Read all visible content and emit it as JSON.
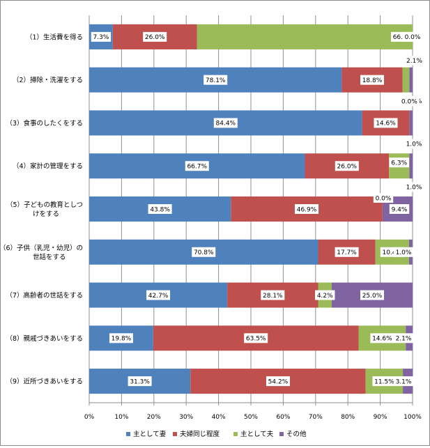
{
  "chart_data": {
    "type": "bar",
    "orientation": "horizontal",
    "stacked": "percent",
    "categories": [
      [
        "（1）生活費を得る"
      ],
      [
        "（2）掃除・洗濯をする"
      ],
      [
        "（3）食事のしたくをする"
      ],
      [
        "（4）家計の管理をする"
      ],
      [
        "（5）子どもの教育としつ",
        "けをする"
      ],
      [
        "（6）子供（乳児・幼児）の",
        "世話をする"
      ],
      [
        "（7）高齢者の世話をする"
      ],
      [
        "（8）親戚づきあいをする"
      ],
      [
        "（9）近所づきあいをする"
      ]
    ],
    "series": [
      {
        "name": "主として妻",
        "color": "#4f81bd",
        "values": [
          7.3,
          78.1,
          84.4,
          66.7,
          43.8,
          70.8,
          42.7,
          19.8,
          31.3
        ],
        "labels": [
          "7.3%",
          "78.1%",
          "84.4%",
          "66.7%",
          "43.8%",
          "70.8%",
          "42.7%",
          "19.8%",
          "31.3%"
        ]
      },
      {
        "name": "夫婦同じ程度",
        "color": "#c0504d",
        "values": [
          26.0,
          18.8,
          14.6,
          26.0,
          46.9,
          17.7,
          28.1,
          63.5,
          54.2
        ],
        "labels": [
          "26.0%",
          "18.8%",
          "14.6%",
          "26.0%",
          "46.9%",
          "17.7%",
          "28.1%",
          "63.5%",
          "54.2%"
        ]
      },
      {
        "name": "主として夫",
        "color": "#9bbb59",
        "values": [
          66.7,
          2.1,
          0.0,
          6.3,
          0.0,
          10.4,
          4.2,
          14.6,
          11.5
        ],
        "labels": [
          "66.7%",
          "2.1%",
          "0.0%",
          "6.3%",
          "0.0%",
          "10.4%",
          "4.2%",
          "14.6%",
          "11.5%"
        ]
      },
      {
        "name": "その他",
        "color": "#8064a2",
        "values": [
          0.0,
          1.0,
          1.0,
          1.0,
          9.4,
          1.0,
          25.0,
          2.1,
          3.1
        ],
        "labels": [
          "0.0%",
          "1.0%",
          "1.0%",
          "1.0%",
          "9.4%",
          "1.0%",
          "25.0%",
          "2.1%",
          "3.1%"
        ]
      }
    ],
    "xlim": [
      0,
      100
    ],
    "xticks": [
      "0%",
      "10%",
      "20%",
      "30%",
      "40%",
      "50%",
      "60%",
      "70%",
      "80%",
      "90%",
      "100%"
    ],
    "grid": true,
    "legend_position": "bottom",
    "title": "",
    "xlabel": "",
    "ylabel": ""
  }
}
